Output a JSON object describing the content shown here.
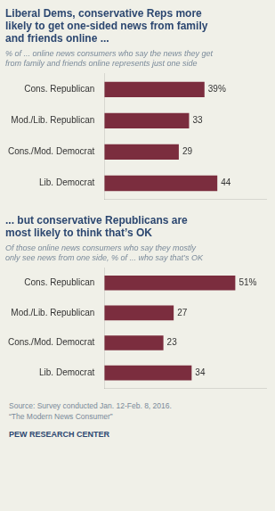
{
  "chart_data": [
    {
      "type": "bar",
      "orientation": "horizontal",
      "title": "Liberal Dems, conservative Reps more\nlikely to get one-sided news from family\nand friends online ...",
      "subtitle": "% of ... online news consumers who say the news they get\nfrom family and friends online represents just one side",
      "categories": [
        "Cons. Republican",
        "Mod./Lib. Republican",
        "Cons./Mod. Democrat",
        "Lib. Democrat"
      ],
      "values": [
        39,
        33,
        29,
        44
      ],
      "value_labels": [
        "39%",
        "33",
        "29",
        "44"
      ],
      "data_labels": true,
      "color": "#7b2d3e",
      "xlim": [
        0,
        63
      ],
      "grid": false,
      "tick_labels": "y"
    },
    {
      "type": "bar",
      "orientation": "horizontal",
      "title": "... but conservative Republicans are\nmost likely to think that’s OK",
      "subtitle": "Of those online news consumers who say they mostly\nonly see news from one side, % of ... who say that’s OK",
      "categories": [
        "Cons. Republican",
        "Mod./Lib. Republican",
        "Cons./Mod. Democrat",
        "Lib. Democrat"
      ],
      "values": [
        51,
        27,
        23,
        34
      ],
      "value_labels": [
        "51%",
        "27",
        "23",
        "34"
      ],
      "data_labels": true,
      "color": "#7b2d3e",
      "xlim": [
        0,
        63
      ],
      "grid": false,
      "tick_labels": "y",
      "annotations": [
        "Source: Survey conducted Jan. 12-Feb. 8, 2016.\n“The Modern News Consumer”",
        "PEW RESEARCH CENTER"
      ]
    }
  ]
}
